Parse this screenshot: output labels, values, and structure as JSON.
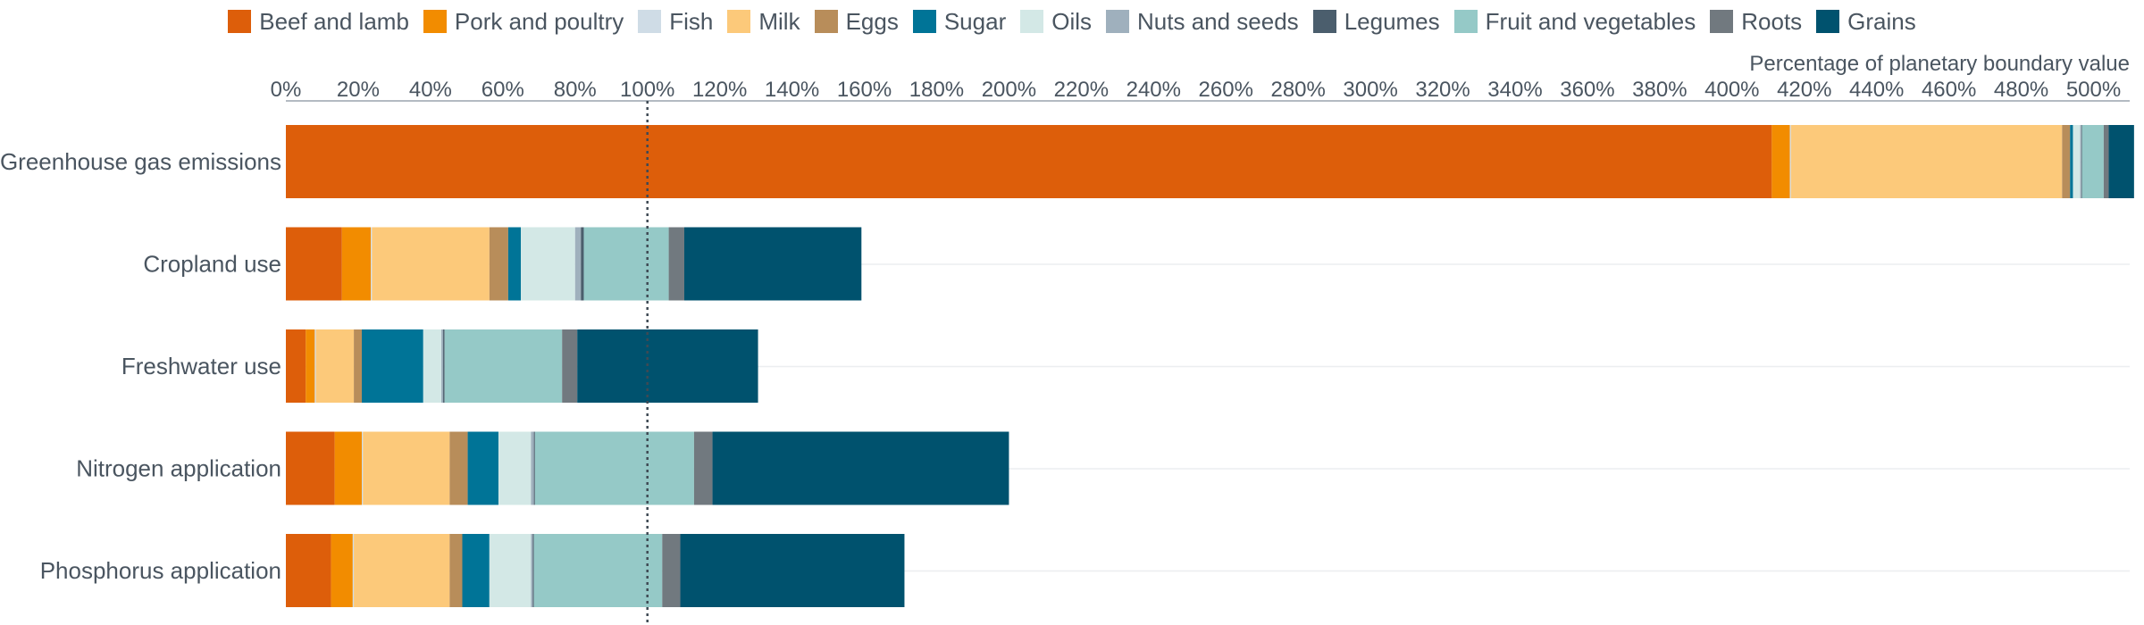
{
  "chart_data": {
    "type": "bar",
    "orientation": "horizontal",
    "stacked": true,
    "xlabel": "Percentage of planetary boundary value",
    "xlim": [
      0,
      510
    ],
    "x_ticks": [
      "0%",
      "20%",
      "40%",
      "60%",
      "80%",
      "100%",
      "120%",
      "140%",
      "160%",
      "180%",
      "200%",
      "220%",
      "240%",
      "260%",
      "280%",
      "300%",
      "320%",
      "340%",
      "360%",
      "380%",
      "400%",
      "420%",
      "440%",
      "460%",
      "480%",
      "500%"
    ],
    "x_tick_values": [
      0,
      20,
      40,
      60,
      80,
      100,
      120,
      140,
      160,
      180,
      200,
      220,
      240,
      260,
      280,
      300,
      320,
      340,
      360,
      380,
      400,
      420,
      440,
      460,
      480,
      500
    ],
    "reference_line": 100,
    "legend_position": "top",
    "categories": [
      "Greenhouse gas emissions",
      "Cropland use",
      "Freshwater use",
      "Nitrogen application",
      "Phosphorus application"
    ],
    "series": [
      {
        "name": "Beef and lamb",
        "color": "#dd5e0a",
        "values": [
          411,
          15.5,
          5.5,
          13.5,
          12.5
        ]
      },
      {
        "name": "Pork and poultry",
        "color": "#f28c00",
        "values": [
          5,
          8,
          2.5,
          7.5,
          6
        ]
      },
      {
        "name": "Fish",
        "color": "#cfdce6",
        "values": [
          0.3,
          0.3,
          0.3,
          0.3,
          0.3
        ]
      },
      {
        "name": "Milk",
        "color": "#fcc97a",
        "values": [
          75,
          32.5,
          10.5,
          24,
          26.5
        ]
      },
      {
        "name": "Eggs",
        "color": "#b88d5a",
        "values": [
          2.2,
          5.2,
          2.2,
          5,
          3.5
        ]
      },
      {
        "name": "Sugar",
        "color": "#007497",
        "values": [
          0.8,
          3.5,
          17,
          8.5,
          7.5
        ]
      },
      {
        "name": "Oils",
        "color": "#d3e8e6",
        "values": [
          2,
          15,
          5,
          9,
          11.5
        ]
      },
      {
        "name": "Nuts and seeds",
        "color": "#9fb0bd",
        "values": [
          0.3,
          1.6,
          0.5,
          0.8,
          0.5
        ]
      },
      {
        "name": "Legumes",
        "color": "#4b5e6d",
        "values": [
          0.2,
          0.8,
          0.4,
          0.3,
          0.3
        ]
      },
      {
        "name": "Fruit and vegetables",
        "color": "#95c9c7",
        "values": [
          6,
          23.5,
          32.5,
          44,
          35.5
        ]
      },
      {
        "name": "Roots",
        "color": "#71797f",
        "values": [
          1.4,
          4.3,
          4.2,
          5.1,
          5
        ]
      },
      {
        "name": "Grains",
        "color": "#00526e",
        "values": [
          7,
          49,
          50,
          82,
          62
        ]
      }
    ]
  }
}
